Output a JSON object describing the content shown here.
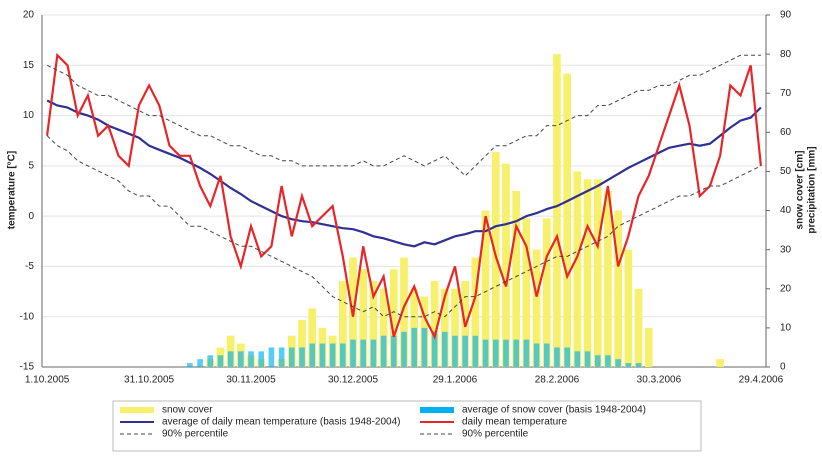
{
  "chart_data": {
    "type": "combo",
    "y_label": "temperature [°C]",
    "y2_label": [
      "snow cover [cm]",
      "precipitation [mm]"
    ],
    "categories": [
      "1.10.2005",
      null,
      null,
      null,
      null,
      null,
      null,
      null,
      null,
      null,
      "31.10.2005",
      null,
      null,
      null,
      null,
      null,
      null,
      null,
      null,
      null,
      "30.11.2005",
      null,
      null,
      null,
      null,
      null,
      null,
      null,
      null,
      null,
      "30.12.2005",
      null,
      null,
      null,
      null,
      null,
      null,
      null,
      null,
      null,
      "29.1.2006",
      null,
      null,
      null,
      null,
      null,
      null,
      null,
      null,
      null,
      "28.2.2006",
      null,
      null,
      null,
      null,
      null,
      null,
      null,
      null,
      null,
      "30.3.2006",
      null,
      null,
      null,
      null,
      null,
      null,
      null,
      null,
      null,
      "29.4.2006"
    ],
    "ylim": [
      -15,
      20
    ],
    "yticks": [
      -15,
      -10,
      -5,
      0,
      5,
      10,
      15,
      20
    ],
    "y2lim": [
      0,
      90
    ],
    "y2ticks": [
      0,
      10,
      20,
      30,
      40,
      50,
      60,
      70,
      80,
      90
    ],
    "grid": true,
    "series": [
      {
        "name": "snow cover",
        "type": "bar",
        "axis": "y2",
        "color": "#f7f06a",
        "values": [
          0,
          0,
          0,
          0,
          0,
          0,
          0,
          0,
          0,
          0,
          0,
          0,
          0,
          0,
          0,
          0,
          2,
          5,
          8,
          6,
          3,
          2,
          0,
          2,
          8,
          12,
          15,
          10,
          8,
          22,
          28,
          25,
          22,
          20,
          25,
          28,
          20,
          18,
          22,
          20,
          20,
          22,
          28,
          40,
          55,
          52,
          45,
          38,
          30,
          38,
          80,
          75,
          50,
          48,
          48,
          45,
          40,
          30,
          20,
          10,
          0,
          0,
          0,
          0,
          0,
          0,
          2,
          0,
          0,
          0,
          0
        ]
      },
      {
        "name": "average of snow cover (basis 1948-2004)",
        "type": "bar",
        "axis": "y2",
        "color": "#00b0f0",
        "values": [
          0,
          0,
          0,
          0,
          0,
          0,
          0,
          0,
          0,
          0,
          0,
          0,
          0,
          0,
          1,
          2,
          3,
          3,
          4,
          4,
          4,
          4,
          5,
          5,
          5,
          5,
          6,
          6,
          6,
          6,
          7,
          7,
          7,
          8,
          8,
          9,
          10,
          10,
          9,
          9,
          8,
          8,
          8,
          7,
          7,
          7,
          7,
          7,
          6,
          6,
          5,
          5,
          4,
          4,
          3,
          3,
          2,
          1,
          1,
          0,
          0,
          0,
          0,
          0,
          0,
          0,
          0,
          0,
          0,
          0,
          0
        ]
      },
      {
        "name": "average of daily mean temperature (basis 1948-2004)",
        "type": "line",
        "color": "#2e3192",
        "values": [
          11.5,
          11,
          10.8,
          10.3,
          10,
          9.6,
          9,
          8.6,
          8.2,
          7.8,
          7,
          6.6,
          6.2,
          5.8,
          5.3,
          4.8,
          4.2,
          3.5,
          2.8,
          2.2,
          1.5,
          1,
          0.5,
          0,
          -0.3,
          -0.5,
          -0.6,
          -0.8,
          -1,
          -1.2,
          -1.3,
          -1.6,
          -2,
          -2.2,
          -2.5,
          -2.8,
          -3,
          -2.6,
          -2.8,
          -2.4,
          -2,
          -1.8,
          -1.5,
          -1.5,
          -1,
          -0.8,
          -0.5,
          0,
          0.3,
          0.7,
          1,
          1.5,
          2,
          2.5,
          3,
          3.6,
          4.2,
          4.8,
          5.3,
          5.8,
          6.3,
          6.8,
          7,
          7.2,
          7,
          7.2,
          8,
          8.8,
          9.5,
          9.8,
          10.8
        ]
      },
      {
        "name": "daily mean temperature",
        "type": "line",
        "color": "#e8262a",
        "values": [
          8,
          16,
          15,
          10,
          12,
          8,
          9,
          6,
          5,
          11,
          13,
          11,
          7,
          6,
          6,
          3,
          1,
          4,
          -2,
          -5,
          -1,
          -4,
          -3,
          3,
          -2,
          2,
          -1,
          0,
          1,
          -4,
          -10,
          -3,
          -8,
          -6,
          -12,
          -9,
          -7,
          -10,
          -12,
          -8,
          -5,
          -11,
          -8,
          0,
          -4,
          -7,
          -1,
          -3,
          -8,
          -4,
          -2,
          -6,
          -4,
          -1,
          -3,
          3,
          -5,
          -2,
          2,
          4,
          7,
          10,
          13,
          9,
          2,
          3,
          6,
          13,
          12,
          15,
          5
        ]
      },
      {
        "name": "90% percentile",
        "type": "line",
        "dash": true,
        "color": "#444444",
        "values": [
          15,
          14.5,
          14,
          13,
          12.5,
          12,
          12,
          11.5,
          11,
          10.5,
          10,
          10,
          9.5,
          9,
          8.5,
          8,
          8,
          7.5,
          7,
          7,
          6.5,
          6,
          6,
          5.5,
          5.5,
          5,
          5,
          5,
          5,
          5,
          5,
          5.5,
          5,
          5,
          5.5,
          6,
          5.5,
          5,
          5.5,
          6,
          5,
          4,
          5,
          6,
          7,
          7,
          7.5,
          8,
          8,
          9,
          9,
          9.5,
          10,
          10,
          11,
          11,
          11.5,
          12,
          12.5,
          12.5,
          13,
          13,
          13.5,
          14,
          14,
          14.5,
          15,
          15.5,
          16,
          16,
          16
        ]
      },
      {
        "name": "90% percentile",
        "type": "line",
        "dash": true,
        "color": "#444444",
        "values": [
          8,
          7,
          6.5,
          5.5,
          5,
          4.5,
          4,
          3.5,
          2.5,
          2,
          2,
          1,
          1,
          0,
          -1,
          -1,
          -1.5,
          -2,
          -2.5,
          -3,
          -3,
          -3.5,
          -4,
          -4.5,
          -5,
          -5.5,
          -6,
          -7,
          -8,
          -8.5,
          -9,
          -9.5,
          -9,
          -10,
          -9.5,
          -10,
          -10,
          -10,
          -9.5,
          -10,
          -9,
          -8,
          -8,
          -7.5,
          -7,
          -6.5,
          -6,
          -5.5,
          -5,
          -4.5,
          -4,
          -4,
          -3.5,
          -3,
          -2.5,
          -2,
          -1,
          -0.5,
          0,
          0.5,
          1,
          1.5,
          2,
          2,
          2.5,
          3,
          3,
          3.5,
          4,
          4.5,
          5
        ]
      }
    ]
  }
}
